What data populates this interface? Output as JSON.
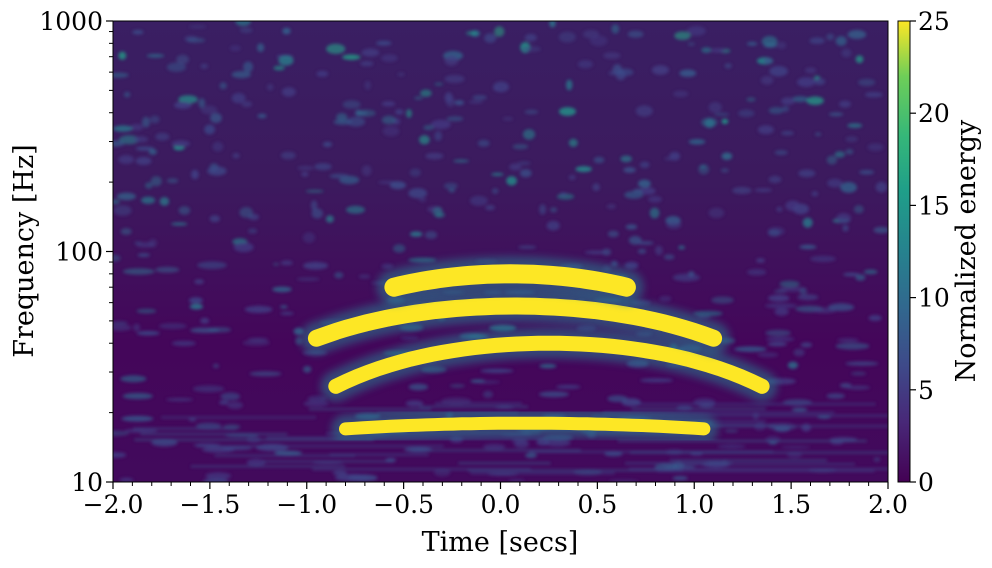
{
  "chart_data": {
    "type": "heatmap",
    "title": "",
    "xlabel": "Time [secs]",
    "ylabel": "Frequency [Hz]",
    "xlim": [
      -2.0,
      2.0
    ],
    "ylim": [
      10,
      1000
    ],
    "yscale": "log",
    "grid": false,
    "x_ticks": [
      -2.0,
      -1.5,
      -1.0,
      -0.5,
      0.0,
      0.5,
      1.0,
      1.5,
      2.0
    ],
    "x_tick_labels": [
      "−2.0",
      "−1.5",
      "−1.0",
      "−0.5",
      "0.0",
      "0.5",
      "1.0",
      "1.5",
      "2.0"
    ],
    "y_ticks": [
      10,
      100,
      1000
    ],
    "y_tick_labels": [
      "10",
      "100",
      "1000"
    ],
    "colormap": "viridis",
    "colorbar": {
      "label": "Normalized energy",
      "range": [
        0,
        25
      ],
      "ticks": [
        0,
        5,
        10,
        15,
        20,
        25
      ],
      "tick_labels": [
        "0",
        "5",
        "10",
        "15",
        "20",
        "25"
      ]
    },
    "features": [
      {
        "t_range": [
          -0.8,
          1.05
        ],
        "freq_center": 18,
        "freq_at_edges": 17,
        "energy": 25
      },
      {
        "t_range": [
          -0.85,
          1.35
        ],
        "freq_center": 40,
        "freq_at_edges": 26,
        "energy": 25
      },
      {
        "t_range": [
          -0.95,
          1.1
        ],
        "freq_center": 58,
        "freq_at_edges": 42,
        "energy": 25
      },
      {
        "t_range": [
          -0.55,
          0.65
        ],
        "freq_center": 80,
        "freq_at_edges": 70,
        "energy": 25
      }
    ]
  }
}
